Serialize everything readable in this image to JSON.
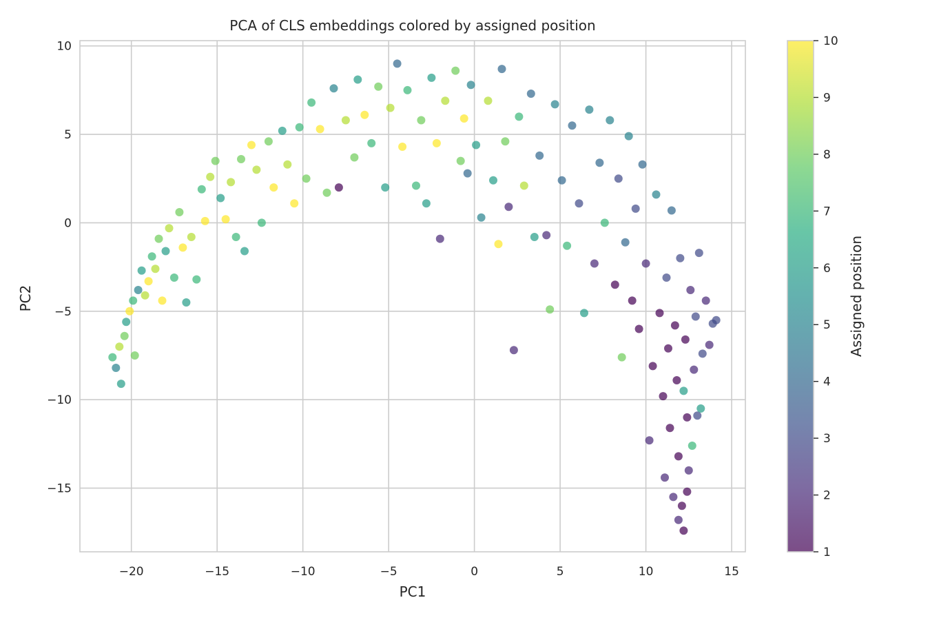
{
  "chart_data": {
    "type": "scatter",
    "title": "PCA of CLS embeddings colored by assigned position",
    "xlabel": "PC1",
    "ylabel": "PC2",
    "xlim": [
      -23,
      15.8
    ],
    "ylim": [
      -18.6,
      10.3
    ],
    "x_ticks": [
      -20,
      -15,
      -10,
      -5,
      0,
      5,
      10,
      15
    ],
    "x_tick_labels": [
      "−20",
      "−15",
      "−10",
      "−5",
      "0",
      "5",
      "10",
      "15"
    ],
    "y_ticks": [
      -15,
      -10,
      -5,
      0,
      5,
      10
    ],
    "y_tick_labels": [
      "−15",
      "−10",
      "−5",
      "0",
      "5",
      "10"
    ],
    "grid": true,
    "colorbar": {
      "label": "Assigned position",
      "min": 1,
      "max": 10,
      "ticks": [
        1,
        2,
        3,
        4,
        5,
        6,
        7,
        8,
        9,
        10
      ],
      "tick_labels": [
        "1",
        "2",
        "3",
        "4",
        "5",
        "6",
        "7",
        "8",
        "9",
        "10"
      ],
      "colormap": "viridis",
      "alpha": 0.7
    },
    "points": [
      [
        -21.1,
        -7.6,
        7
      ],
      [
        -20.9,
        -8.2,
        5
      ],
      [
        -20.7,
        -7.0,
        9
      ],
      [
        -20.6,
        -9.1,
        6
      ],
      [
        -20.4,
        -6.4,
        8
      ],
      [
        -20.3,
        -5.6,
        6
      ],
      [
        -20.1,
        -5.0,
        10
      ],
      [
        -19.9,
        -4.4,
        7
      ],
      [
        -19.8,
        -7.5,
        8
      ],
      [
        -19.6,
        -3.8,
        5
      ],
      [
        -19.4,
        -2.7,
        6
      ],
      [
        -19.2,
        -4.1,
        9
      ],
      [
        -19.0,
        -3.3,
        10
      ],
      [
        -18.8,
        -1.9,
        7
      ],
      [
        -18.6,
        -2.6,
        9
      ],
      [
        -18.4,
        -0.9,
        8
      ],
      [
        -18.2,
        -4.4,
        10
      ],
      [
        -18.0,
        -1.6,
        6
      ],
      [
        -17.8,
        -0.3,
        9
      ],
      [
        -17.5,
        -3.1,
        7
      ],
      [
        -17.2,
        0.6,
        8
      ],
      [
        -17.0,
        -1.4,
        10
      ],
      [
        -16.8,
        -4.5,
        6
      ],
      [
        -16.5,
        -0.8,
        9
      ],
      [
        -16.2,
        -3.2,
        7
      ],
      [
        -15.9,
        1.9,
        7
      ],
      [
        -15.7,
        0.1,
        10
      ],
      [
        -15.4,
        2.6,
        9
      ],
      [
        -15.1,
        3.5,
        8
      ],
      [
        -14.8,
        1.4,
        6
      ],
      [
        -14.5,
        0.2,
        10
      ],
      [
        -14.2,
        2.3,
        9
      ],
      [
        -13.9,
        -0.8,
        7
      ],
      [
        -13.6,
        3.6,
        8
      ],
      [
        -13.4,
        -1.6,
        6
      ],
      [
        -13.0,
        4.4,
        10
      ],
      [
        -12.7,
        3.0,
        9
      ],
      [
        -12.4,
        0.0,
        7
      ],
      [
        -12.0,
        4.6,
        8
      ],
      [
        -11.7,
        2.0,
        10
      ],
      [
        -11.2,
        5.2,
        6
      ],
      [
        -10.9,
        3.3,
        9
      ],
      [
        -10.5,
        1.1,
        10
      ],
      [
        -10.2,
        5.4,
        7
      ],
      [
        -9.8,
        2.5,
        8
      ],
      [
        -9.5,
        6.8,
        7
      ],
      [
        -9.0,
        5.3,
        10
      ],
      [
        -8.6,
        1.7,
        8
      ],
      [
        -8.2,
        7.6,
        5
      ],
      [
        -7.9,
        2.0,
        1
      ],
      [
        -7.5,
        5.8,
        9
      ],
      [
        -7.0,
        3.7,
        8
      ],
      [
        -6.8,
        8.1,
        6
      ],
      [
        -6.4,
        6.1,
        10
      ],
      [
        -6.0,
        4.5,
        7
      ],
      [
        -5.6,
        7.7,
        8
      ],
      [
        -5.2,
        2.0,
        6
      ],
      [
        -4.9,
        6.5,
        9
      ],
      [
        -4.5,
        9.0,
        4
      ],
      [
        -4.2,
        4.3,
        10
      ],
      [
        -3.9,
        7.5,
        7
      ],
      [
        -3.4,
        2.1,
        7
      ],
      [
        -3.1,
        5.8,
        8
      ],
      [
        -2.8,
        1.1,
        6
      ],
      [
        -2.5,
        8.2,
        6
      ],
      [
        -2.2,
        4.5,
        10
      ],
      [
        -2.0,
        -0.9,
        2
      ],
      [
        -1.7,
        6.9,
        9
      ],
      [
        -1.1,
        8.6,
        8
      ],
      [
        -0.8,
        3.5,
        8
      ],
      [
        -0.6,
        5.9,
        10
      ],
      [
        -0.4,
        2.8,
        4
      ],
      [
        -0.2,
        7.8,
        5
      ],
      [
        0.1,
        4.4,
        6
      ],
      [
        0.4,
        0.3,
        5
      ],
      [
        0.8,
        6.9,
        9
      ],
      [
        1.1,
        2.4,
        6
      ],
      [
        1.4,
        -1.2,
        10
      ],
      [
        1.6,
        8.7,
        4
      ],
      [
        1.8,
        4.6,
        8
      ],
      [
        2.0,
        0.9,
        2
      ],
      [
        2.3,
        -7.2,
        2
      ],
      [
        2.6,
        6.0,
        7
      ],
      [
        2.9,
        2.1,
        9
      ],
      [
        3.3,
        7.3,
        4
      ],
      [
        3.5,
        -0.8,
        6
      ],
      [
        3.8,
        3.8,
        4
      ],
      [
        4.2,
        -0.7,
        2
      ],
      [
        4.4,
        -4.9,
        8
      ],
      [
        4.7,
        6.7,
        5
      ],
      [
        5.1,
        2.4,
        4
      ],
      [
        5.4,
        -1.3,
        7
      ],
      [
        5.7,
        5.5,
        4
      ],
      [
        6.1,
        1.1,
        3
      ],
      [
        6.4,
        -5.1,
        6
      ],
      [
        6.7,
        6.4,
        5
      ],
      [
        7.0,
        -2.3,
        2
      ],
      [
        7.3,
        3.4,
        4
      ],
      [
        7.6,
        0.0,
        7
      ],
      [
        7.9,
        5.8,
        5
      ],
      [
        8.2,
        -3.5,
        1
      ],
      [
        8.4,
        2.5,
        3
      ],
      [
        8.6,
        -7.6,
        8
      ],
      [
        8.8,
        -1.1,
        4
      ],
      [
        9.0,
        4.9,
        5
      ],
      [
        9.2,
        -4.4,
        1
      ],
      [
        9.4,
        0.8,
        3
      ],
      [
        9.6,
        -6.0,
        1
      ],
      [
        9.8,
        3.3,
        4
      ],
      [
        10.0,
        -2.3,
        2
      ],
      [
        10.2,
        -12.3,
        2
      ],
      [
        10.4,
        -8.1,
        1
      ],
      [
        10.6,
        1.6,
        5
      ],
      [
        10.8,
        -5.1,
        1
      ],
      [
        11.0,
        -9.8,
        1
      ],
      [
        11.1,
        -14.4,
        2
      ],
      [
        11.2,
        -3.1,
        3
      ],
      [
        11.3,
        -7.1,
        1
      ],
      [
        11.4,
        -11.6,
        1
      ],
      [
        11.5,
        0.7,
        4
      ],
      [
        11.6,
        -15.5,
        2
      ],
      [
        11.7,
        -5.8,
        1
      ],
      [
        11.8,
        -8.9,
        1
      ],
      [
        11.9,
        -13.2,
        1
      ],
      [
        12.0,
        -2.0,
        3
      ],
      [
        12.1,
        -16.0,
        1
      ],
      [
        12.2,
        -9.5,
        6
      ],
      [
        12.3,
        -6.6,
        1
      ],
      [
        12.4,
        -11.0,
        1
      ],
      [
        12.5,
        -14.0,
        2
      ],
      [
        12.6,
        -3.8,
        2
      ],
      [
        12.7,
        -12.6,
        7
      ],
      [
        12.8,
        -8.3,
        2
      ],
      [
        12.9,
        -5.3,
        3
      ],
      [
        13.0,
        -10.9,
        3
      ],
      [
        13.1,
        -1.7,
        3
      ],
      [
        13.2,
        -10.5,
        6
      ],
      [
        13.3,
        -7.4,
        3
      ],
      [
        13.5,
        -4.4,
        2
      ],
      [
        13.7,
        -6.9,
        2
      ],
      [
        13.9,
        -5.7,
        3
      ],
      [
        14.1,
        -5.5,
        3
      ],
      [
        12.2,
        -17.4,
        1
      ],
      [
        11.9,
        -16.8,
        2
      ],
      [
        12.4,
        -15.2,
        1
      ]
    ]
  }
}
